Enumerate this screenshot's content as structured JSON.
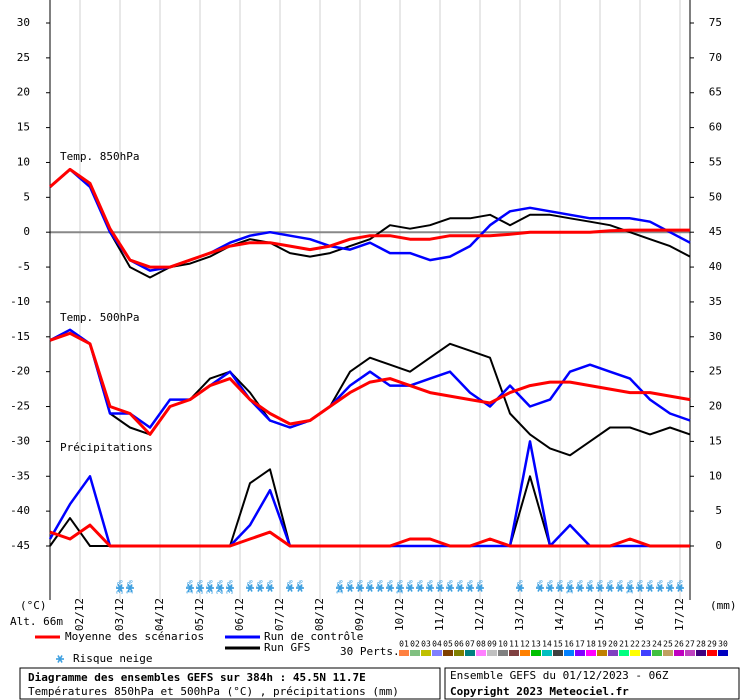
{
  "chart_data": {
    "type": "line",
    "title": "Diagramme des ensembles GEFS sur 384h : 45.5N 11.7E",
    "subtitle": "Températures 850hPa et 500hPa (°C) , précipitations (mm)",
    "run_info": "Ensemble GEFS du 01/12/2023 - 06Z",
    "copyright": "Copyright 2023 Meteociel.fr",
    "altitude": "Alt. 66m",
    "ylabel": "(°C)",
    "y2label": "(mm)",
    "panel_labels": [
      "Temp. 850hPa",
      "Temp. 500hPa",
      "Précipitations"
    ],
    "xlim": [
      0,
      384
    ],
    "xticks": [
      {
        "value": 18,
        "label": "02/12"
      },
      {
        "value": 42,
        "label": "03/12"
      },
      {
        "value": 66,
        "label": "04/12"
      },
      {
        "value": 90,
        "label": "05/12"
      },
      {
        "value": 114,
        "label": "06/12"
      },
      {
        "value": 138,
        "label": "07/12"
      },
      {
        "value": 162,
        "label": "08/12"
      },
      {
        "value": 186,
        "label": "09/12"
      },
      {
        "value": 210,
        "label": "10/12"
      },
      {
        "value": 234,
        "label": "11/12"
      },
      {
        "value": 258,
        "label": "12/12"
      },
      {
        "value": 282,
        "label": "13/12"
      },
      {
        "value": 306,
        "label": "14/12"
      },
      {
        "value": 330,
        "label": "15/12"
      },
      {
        "value": 354,
        "label": "16/12"
      },
      {
        "value": 378,
        "label": "17/12"
      }
    ],
    "ylim": [
      -45,
      30
    ],
    "yticks": [
      30,
      25,
      20,
      15,
      10,
      5,
      0,
      -5,
      -10,
      -15,
      -20,
      -25,
      -30,
      -35,
      -40,
      -45
    ],
    "y2lim": [
      0,
      75
    ],
    "y2ticks": [
      75,
      70,
      65,
      60,
      55,
      50,
      45,
      40,
      35,
      30,
      25,
      20,
      15,
      10,
      5,
      0
    ],
    "grid": true,
    "x": [
      0,
      12,
      24,
      36,
      48,
      60,
      72,
      84,
      96,
      108,
      120,
      132,
      144,
      156,
      168,
      180,
      192,
      204,
      216,
      228,
      240,
      252,
      264,
      276,
      288,
      300,
      312,
      324,
      336,
      348,
      360,
      372,
      384
    ],
    "series": [
      {
        "name": "Moyenne des scénarios",
        "color": "#ff0000",
        "t850": [
          6.5,
          9,
          7,
          0.5,
          -4,
          -5,
          -5,
          -4,
          -3,
          -2,
          -1.5,
          -1.5,
          -2,
          -2.5,
          -2,
          -1,
          -0.5,
          -0.5,
          -1,
          -1,
          -0.5,
          -0.5,
          -0.5,
          -0.3,
          0,
          0,
          0,
          0,
          0.2,
          0.3,
          0.3,
          0.3,
          0.3
        ],
        "t500": [
          -15.5,
          -14.5,
          -16,
          -25,
          -26,
          -29,
          -25,
          -24,
          -22,
          -21,
          -24,
          -26,
          -27.5,
          -27,
          -25,
          -23,
          -21.5,
          -21,
          -22,
          -23,
          -23.5,
          -24,
          -24.5,
          -23,
          -22,
          -21.5,
          -21.5,
          -22,
          -22.5,
          -23,
          -23,
          -23.5,
          -24
        ],
        "precip": [
          2,
          1,
          3,
          0,
          0,
          0,
          0,
          0,
          0,
          0,
          1,
          2,
          0,
          0,
          0,
          0,
          0,
          0,
          1,
          1,
          0,
          0,
          1,
          0,
          0,
          0,
          0,
          0,
          0,
          1,
          0,
          0,
          0
        ]
      },
      {
        "name": "Run de contrôle",
        "color": "#0000ff",
        "t850": [
          6.5,
          9,
          6.5,
          0,
          -4,
          -5.5,
          -5,
          -4,
          -3,
          -1.5,
          -0.5,
          0,
          -0.5,
          -1,
          -2,
          -2.5,
          -1.5,
          -3,
          -3,
          -4,
          -3.5,
          -2,
          1,
          3,
          3.5,
          3,
          2.5,
          2,
          2,
          2,
          1.5,
          0,
          -1.5
        ],
        "t500": [
          -15.5,
          -14,
          -16,
          -26,
          -26,
          -28,
          -24,
          -24,
          -22,
          -20,
          -24,
          -27,
          -28,
          -27,
          -25,
          -22,
          -20,
          -22,
          -22,
          -21,
          -20,
          -23,
          -25,
          -22,
          -25,
          -24,
          -20,
          -19,
          -20,
          -21,
          -24,
          -26,
          -27
        ],
        "precip": [
          1,
          6,
          10,
          0,
          0,
          0,
          0,
          0,
          0,
          0,
          3,
          8,
          0,
          0,
          0,
          0,
          0,
          0,
          0,
          0,
          0,
          0,
          0,
          0,
          15,
          0,
          3,
          0,
          0,
          0,
          0,
          0,
          0
        ]
      },
      {
        "name": "Run GFS",
        "color": "#000000",
        "t850": [
          6.5,
          9,
          7,
          0,
          -5,
          -6.5,
          -5,
          -4.5,
          -3.5,
          -2,
          -1,
          -1.5,
          -3,
          -3.5,
          -3,
          -2,
          -1,
          1,
          0.5,
          1,
          2,
          2,
          2.5,
          1,
          2.5,
          2.5,
          2,
          1.5,
          1,
          0,
          -1,
          -2,
          -3.5
        ],
        "t500": [
          -15.5,
          -14,
          -16,
          -26,
          -28,
          -29,
          -25,
          -24,
          -21,
          -20,
          -23,
          -27,
          -28,
          -27,
          -25,
          -20,
          -18,
          -19,
          -20,
          -18,
          -16,
          -17,
          -18,
          -26,
          -29,
          -31,
          -32,
          -30,
          -28,
          -28,
          -29,
          -28,
          -29
        ],
        "precip": [
          0,
          4,
          0,
          0,
          0,
          0,
          0,
          0,
          0,
          0,
          9,
          11,
          0,
          0,
          0,
          0,
          0,
          0,
          0,
          0,
          0,
          0,
          0,
          0,
          10,
          0,
          0,
          0,
          0,
          0,
          0,
          0,
          0
        ]
      }
    ],
    "snow_legend": "Risque neige",
    "snow": {
      "x": [
        42,
        48,
        84,
        90,
        96,
        102,
        108,
        120,
        126,
        132,
        144,
        150,
        174,
        180,
        186,
        192,
        198,
        204,
        210,
        216,
        222,
        228,
        234,
        240,
        246,
        252,
        258,
        282,
        294,
        300,
        306,
        312,
        318,
        324,
        330,
        336,
        342,
        348,
        354,
        360,
        366,
        372,
        378
      ],
      "labels": [
        "35%",
        "10%",
        "13%",
        "35%",
        "35%",
        "23%",
        "35%",
        "6%",
        "6%",
        "3%",
        "3%",
        "3%",
        "13%",
        "6%",
        "3%",
        "3%",
        "3%",
        "3%",
        "10%",
        "6%",
        "3%",
        "6%",
        "6%",
        "6%",
        "3%",
        "6%",
        "3%",
        "3%",
        "3%",
        "6%",
        "3%",
        "13%",
        "3%",
        "6%",
        "6%",
        "3%",
        "3%",
        "10%",
        "6%",
        "6%",
        "6%",
        "6%",
        "3%"
      ]
    },
    "members_label": "30 Perts.",
    "members": [
      {
        "name": "01",
        "color": "#ff8040"
      },
      {
        "name": "02",
        "color": "#80c080"
      },
      {
        "name": "03",
        "color": "#c0c000"
      },
      {
        "name": "04",
        "color": "#8080ff"
      },
      {
        "name": "05",
        "color": "#804000"
      },
      {
        "name": "06",
        "color": "#808000"
      },
      {
        "name": "07",
        "color": "#008080"
      },
      {
        "name": "08",
        "color": "#ff80ff"
      },
      {
        "name": "09",
        "color": "#c0c0c0"
      },
      {
        "name": "10",
        "color": "#808080"
      },
      {
        "name": "11",
        "color": "#804040"
      },
      {
        "name": "12",
        "color": "#ff8000"
      },
      {
        "name": "13",
        "color": "#00c000"
      },
      {
        "name": "14",
        "color": "#00c0c0"
      },
      {
        "name": "15",
        "color": "#404040"
      },
      {
        "name": "16",
        "color": "#0080ff"
      },
      {
        "name": "17",
        "color": "#8000ff"
      },
      {
        "name": "18",
        "color": "#ff00ff"
      },
      {
        "name": "19",
        "color": "#c08000"
      },
      {
        "name": "20",
        "color": "#8040c0"
      },
      {
        "name": "21",
        "color": "#00ff80"
      },
      {
        "name": "22",
        "color": "#ffff00"
      },
      {
        "name": "23",
        "color": "#4040ff"
      },
      {
        "name": "24",
        "color": "#40c040"
      },
      {
        "name": "25",
        "color": "#c0a060"
      },
      {
        "name": "26",
        "color": "#c000c0"
      },
      {
        "name": "27",
        "color": "#c040c0"
      },
      {
        "name": "28",
        "color": "#400080"
      },
      {
        "name": "29",
        "color": "#ff0000"
      },
      {
        "name": "30",
        "color": "#0000c0"
      }
    ]
  }
}
